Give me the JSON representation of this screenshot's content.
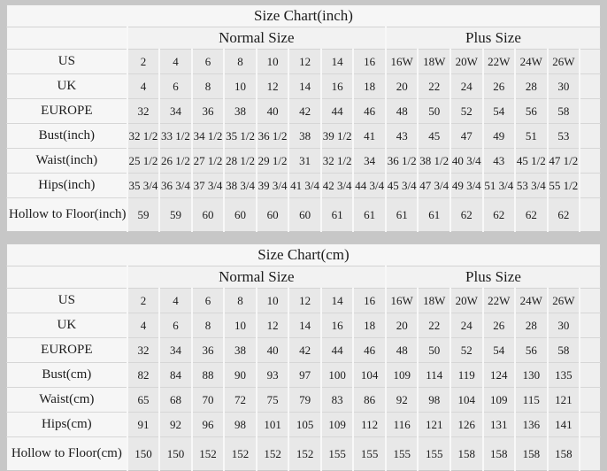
{
  "colors": {
    "page_background": "#c7c7c7",
    "table_background": "#f6f6f6",
    "data_cell_background": "#e8e8e8",
    "border": "#d6d6d6",
    "text": "#1c1c1c"
  },
  "chart_data": [
    {
      "type": "table",
      "title": "Size Chart(inch)",
      "column_groups": [
        {
          "label": "Normal Size",
          "span": 8
        },
        {
          "label": "Plus Size",
          "span": 6
        }
      ],
      "rows": [
        {
          "label": "US",
          "values": [
            "2",
            "4",
            "6",
            "8",
            "10",
            "12",
            "14",
            "16",
            "16W",
            "18W",
            "20W",
            "22W",
            "24W",
            "26W"
          ]
        },
        {
          "label": "UK",
          "values": [
            "4",
            "6",
            "8",
            "10",
            "12",
            "14",
            "16",
            "18",
            "20",
            "22",
            "24",
            "26",
            "28",
            "30"
          ]
        },
        {
          "label": "EUROPE",
          "values": [
            "32",
            "34",
            "36",
            "38",
            "40",
            "42",
            "44",
            "46",
            "48",
            "50",
            "52",
            "54",
            "56",
            "58"
          ]
        },
        {
          "label": "Bust(inch)",
          "values": [
            "32 1/2",
            "33 1/2",
            "34 1/2",
            "35 1/2",
            "36 1/2",
            "38",
            "39 1/2",
            "41",
            "43",
            "45",
            "47",
            "49",
            "51",
            "53"
          ]
        },
        {
          "label": "Waist(inch)",
          "values": [
            "25 1/2",
            "26 1/2",
            "27 1/2",
            "28 1/2",
            "29 1/2",
            "31",
            "32 1/2",
            "34",
            "36 1/2",
            "38 1/2",
            "40 3/4",
            "43",
            "45 1/2",
            "47 1/2"
          ]
        },
        {
          "label": "Hips(inch)",
          "values": [
            "35 3/4",
            "36 3/4",
            "37 3/4",
            "38 3/4",
            "39 3/4",
            "41 3/4",
            "42 3/4",
            "44 3/4",
            "45 3/4",
            "47 3/4",
            "49 3/4",
            "51 3/4",
            "53 3/4",
            "55 1/2"
          ]
        },
        {
          "label": "Hollow to Floor(inch)",
          "values": [
            "59",
            "59",
            "60",
            "60",
            "60",
            "60",
            "61",
            "61",
            "61",
            "61",
            "62",
            "62",
            "62",
            "62"
          ]
        }
      ]
    },
    {
      "type": "table",
      "title": "Size Chart(cm)",
      "column_groups": [
        {
          "label": "Normal Size",
          "span": 8
        },
        {
          "label": "Plus Size",
          "span": 6
        }
      ],
      "rows": [
        {
          "label": "US",
          "values": [
            "2",
            "4",
            "6",
            "8",
            "10",
            "12",
            "14",
            "16",
            "16W",
            "18W",
            "20W",
            "22W",
            "24W",
            "26W"
          ]
        },
        {
          "label": "UK",
          "values": [
            "4",
            "6",
            "8",
            "10",
            "12",
            "14",
            "16",
            "18",
            "20",
            "22",
            "24",
            "26",
            "28",
            "30"
          ]
        },
        {
          "label": "EUROPE",
          "values": [
            "32",
            "34",
            "36",
            "38",
            "40",
            "42",
            "44",
            "46",
            "48",
            "50",
            "52",
            "54",
            "56",
            "58"
          ]
        },
        {
          "label": "Bust(cm)",
          "values": [
            "82",
            "84",
            "88",
            "90",
            "93",
            "97",
            "100",
            "104",
            "109",
            "114",
            "119",
            "124",
            "130",
            "135"
          ]
        },
        {
          "label": "Waist(cm)",
          "values": [
            "65",
            "68",
            "70",
            "72",
            "75",
            "79",
            "83",
            "86",
            "92",
            "98",
            "104",
            "109",
            "115",
            "121"
          ]
        },
        {
          "label": "Hips(cm)",
          "values": [
            "91",
            "92",
            "96",
            "98",
            "101",
            "105",
            "109",
            "112",
            "116",
            "121",
            "126",
            "131",
            "136",
            "141"
          ]
        },
        {
          "label": "Hollow to Floor(cm)",
          "values": [
            "150",
            "150",
            "152",
            "152",
            "152",
            "152",
            "155",
            "155",
            "155",
            "155",
            "158",
            "158",
            "158",
            "158"
          ]
        }
      ]
    }
  ]
}
